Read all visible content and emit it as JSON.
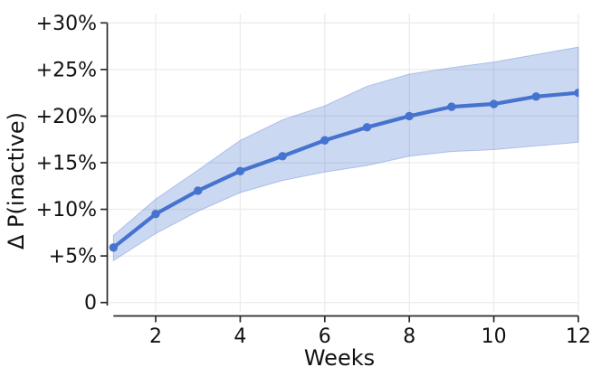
{
  "chart_data": {
    "type": "line",
    "title": "",
    "xlabel": "Weeks",
    "ylabel": "Δ P(inactive)",
    "x": [
      1,
      2,
      3,
      4,
      5,
      6,
      7,
      8,
      9,
      10,
      11,
      12
    ],
    "series": [
      {
        "name": "Δ P(inactive)",
        "values": [
          5.9,
          9.5,
          12.0,
          14.1,
          15.7,
          17.4,
          18.8,
          20.0,
          21.0,
          21.3,
          22.1,
          22.5
        ],
        "ci_lower": [
          4.5,
          7.4,
          9.8,
          11.8,
          13.1,
          14.0,
          14.7,
          15.7,
          16.2,
          16.4,
          16.8,
          17.2
        ],
        "ci_upper": [
          7.2,
          11.1,
          14.2,
          17.4,
          19.6,
          21.1,
          23.2,
          24.5,
          25.2,
          25.8,
          26.6,
          27.4
        ]
      }
    ],
    "xticks": {
      "values": [
        2,
        4,
        6,
        8,
        10,
        12
      ],
      "labels": [
        "2",
        "4",
        "6",
        "8",
        "10",
        "12"
      ]
    },
    "yticks": {
      "values": [
        0,
        5,
        10,
        15,
        20,
        25,
        30
      ],
      "labels": [
        "0",
        "+5%",
        "+10%",
        "+15%",
        "+20%",
        "+25%",
        "+30%"
      ]
    },
    "xlim": [
      0.865,
      12.0
    ],
    "ylim": [
      -1,
      31
    ],
    "grid": true,
    "legend": "none",
    "marker": "circle",
    "colors": {
      "line": "#4573cf",
      "band_fill": "#4573cf",
      "band_opacity": 0.28,
      "grid": "#ececec",
      "axis": "#2b2b2b",
      "text": "#111111",
      "background": "#ffffff"
    }
  }
}
